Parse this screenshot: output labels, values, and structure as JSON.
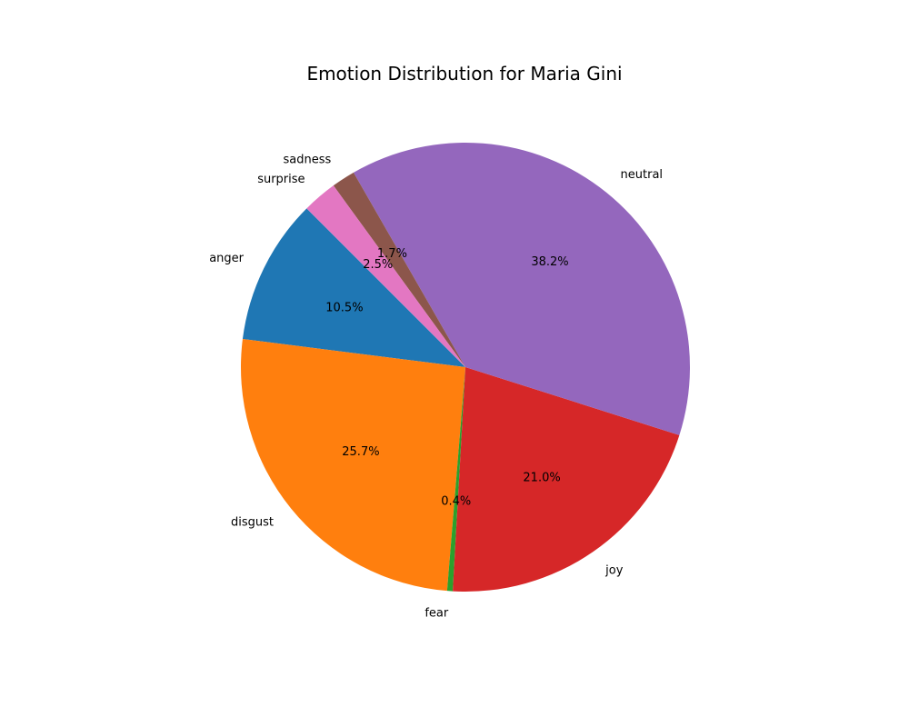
{
  "chart_data": {
    "type": "pie",
    "title": "Emotion Distribution for Maria Gini",
    "categories": [
      "anger",
      "disgust",
      "fear",
      "joy",
      "neutral",
      "sadness",
      "surprise"
    ],
    "values": [
      10.5,
      25.7,
      0.4,
      21.0,
      38.2,
      1.7,
      2.5
    ],
    "value_labels": [
      "10.5%",
      "25.7%",
      "0.4%",
      "21.0%",
      "38.2%",
      "1.7%",
      "2.5%"
    ],
    "colors": [
      "#1f77b4",
      "#ff7f0e",
      "#2ca02c",
      "#d62728",
      "#9467bd",
      "#8c564b",
      "#e377c2"
    ],
    "start_angle_deg": 135,
    "direction": "counterclockwise",
    "legend": "none"
  }
}
